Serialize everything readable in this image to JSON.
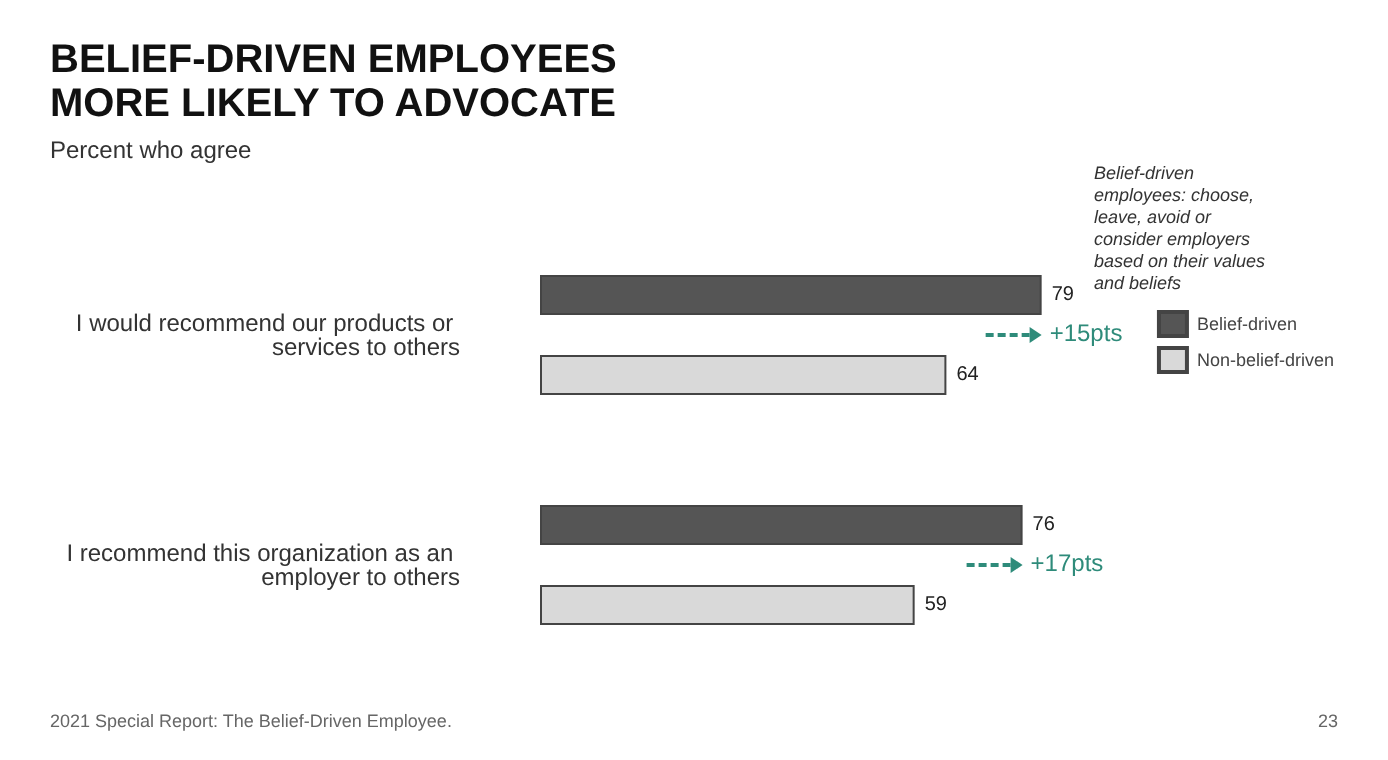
{
  "chart_data": {
    "type": "bar",
    "orientation": "horizontal",
    "title": "BELIEF-DRIVEN EMPLOYEES\nMORE LIKELY TO ADVOCATE",
    "subtitle": "Percent who agree",
    "categories": [
      "I would recommend our products or services to others",
      "I recommend this organization as an employer to others"
    ],
    "series": [
      {
        "name": "Belief-driven",
        "color": "#555555",
        "values": [
          79,
          76
        ]
      },
      {
        "name": "Non-belief-driven",
        "color": "#d9d9d9",
        "values": [
          64,
          59
        ]
      }
    ],
    "tick_labels": "y",
    "data_labels": true,
    "grid": false,
    "legend": "top right",
    "legend_title": "Belief-driven employees: choose, leave, avoid or consider employers based on their values and beliefs",
    "annotations": [
      "+15pts",
      "+17pts",
      "2021 Special Report: The Belief-Driven Employee.",
      "23"
    ]
  }
}
